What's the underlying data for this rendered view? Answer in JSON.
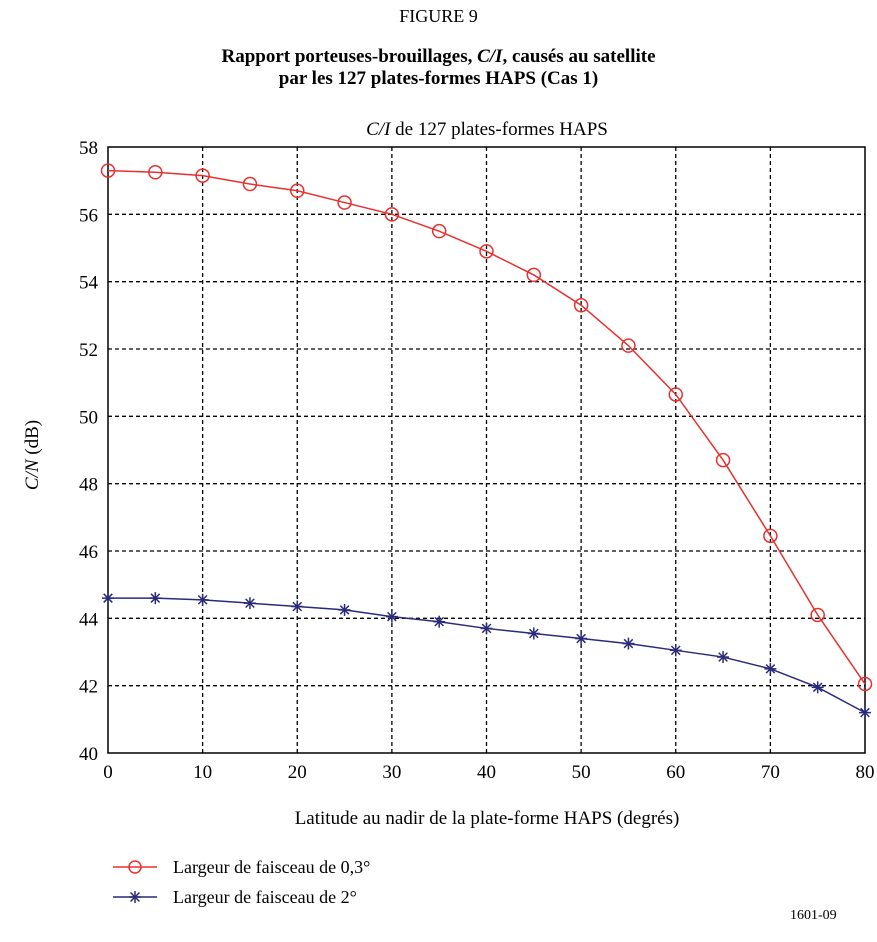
{
  "figure_number": "FIGURE 9",
  "figure_title_line1_pre": "Rapport porteuses-brouillages, ",
  "figure_title_line1_it": "C/I",
  "figure_title_line1_post": ", causés au satellite",
  "figure_title_line2": "par les 127 plates-formes HAPS (Cas 1)",
  "reference": "1601-09",
  "colors": {
    "series1": "#e8302f",
    "series2": "#2b2a7a",
    "grid": "#000000"
  },
  "chart_data": {
    "type": "line",
    "title_italic": "C/I",
    "title_rest": " de 127 plates-formes HAPS",
    "xlabel": "Latitude au nadir de la plate-forme HAPS (degrés)",
    "ylabel_italic": "C/N",
    "ylabel_rest": " (dB)",
    "xlim": [
      0,
      80
    ],
    "ylim": [
      40,
      58
    ],
    "xticks": [
      0,
      10,
      20,
      30,
      40,
      50,
      60,
      70,
      80
    ],
    "yticks": [
      40,
      42,
      44,
      46,
      48,
      50,
      52,
      54,
      56,
      58
    ],
    "grid": true,
    "legend_position": "below",
    "x": [
      0,
      5,
      10,
      15,
      20,
      25,
      30,
      35,
      40,
      45,
      50,
      55,
      60,
      65,
      70,
      75,
      80
    ],
    "series": [
      {
        "name": "Largeur de faisceau de 0,3°",
        "marker": "circle",
        "values": [
          57.3,
          57.25,
          57.15,
          56.9,
          56.7,
          56.35,
          56.0,
          55.5,
          54.9,
          54.2,
          53.3,
          52.1,
          50.65,
          48.7,
          46.45,
          44.1,
          42.05
        ]
      },
      {
        "name": "Largeur de faisceau de 2°",
        "marker": "star",
        "values": [
          44.6,
          44.6,
          44.55,
          44.45,
          44.35,
          44.25,
          44.05,
          43.9,
          43.7,
          43.55,
          43.4,
          43.25,
          43.05,
          42.85,
          42.5,
          41.95,
          41.2
        ]
      }
    ]
  }
}
